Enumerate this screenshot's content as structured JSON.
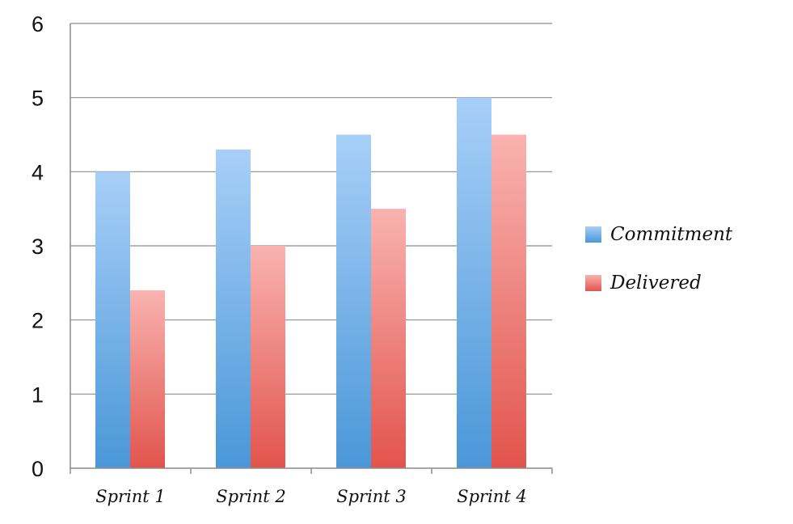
{
  "chart_data": {
    "type": "bar",
    "title": "",
    "xlabel": "",
    "ylabel": "",
    "categories": [
      "Sprint 1",
      "Sprint 2",
      "Sprint 3",
      "Sprint 4"
    ],
    "series": [
      {
        "name": "Commitment",
        "values": [
          4,
          4.3,
          4.5,
          5
        ],
        "color_top": "#a8cff8",
        "color_bottom": "#4a97d8"
      },
      {
        "name": "Delivered",
        "values": [
          2.4,
          3,
          3.5,
          4.5
        ],
        "color_top": "#f9b3b0",
        "color_bottom": "#e2544d"
      }
    ],
    "ylim": [
      0,
      6
    ],
    "yticks": [
      "0",
      "1",
      "2",
      "3",
      "4",
      "5",
      "6"
    ],
    "grid": true,
    "legend_position": "right"
  },
  "colors": {
    "grid": "#8c8c8c",
    "axis": "#8c8c8c",
    "background": "#ffffff"
  }
}
